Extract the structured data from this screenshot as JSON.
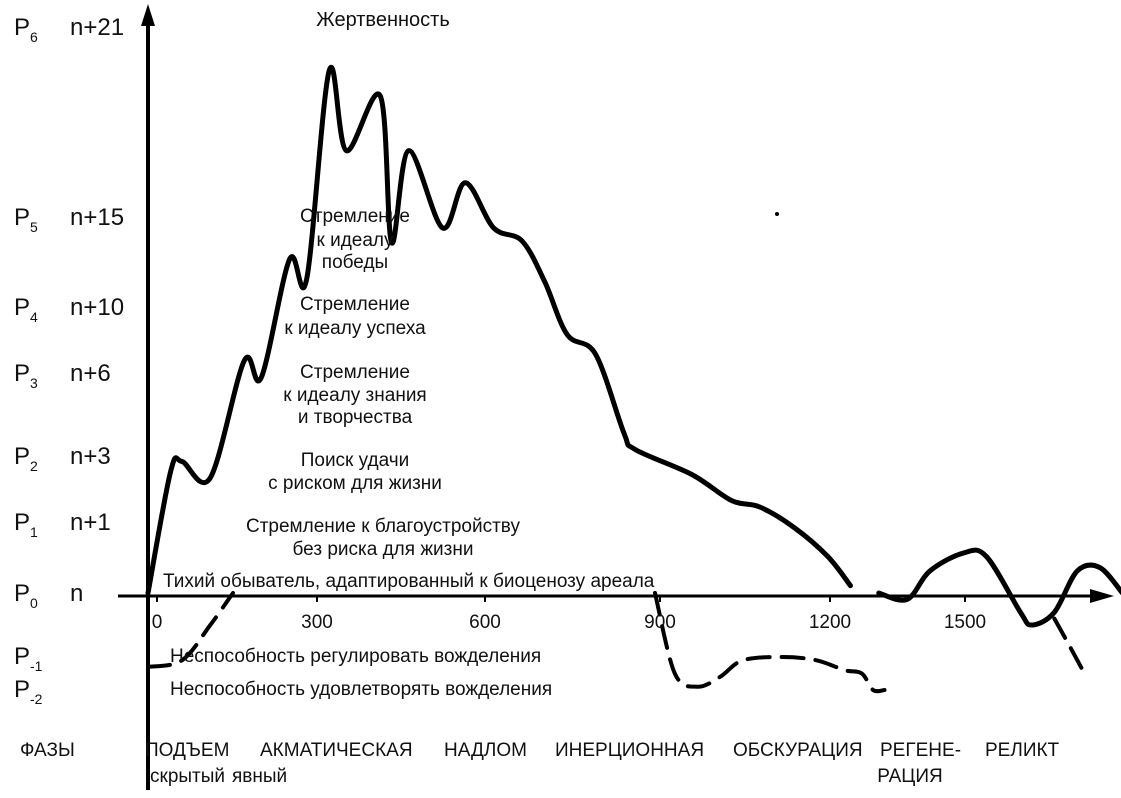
{
  "chart_data": {
    "type": "line",
    "title": "Жертвенность",
    "x_ticks": [
      "0",
      "300",
      "600",
      "900",
      "1200",
      "1500"
    ],
    "xlim": [
      0,
      1700
    ],
    "levels": [
      {
        "p": "P",
        "sub": "6",
        "n": "n+21",
        "value": 21
      },
      {
        "p": "P",
        "sub": "5",
        "n": "n+15",
        "value": 15
      },
      {
        "p": "P",
        "sub": "4",
        "n": "n+10",
        "value": 10
      },
      {
        "p": "P",
        "sub": "3",
        "n": "n+6",
        "value": 6
      },
      {
        "p": "P",
        "sub": "2",
        "n": "n+3",
        "value": 3
      },
      {
        "p": "P",
        "sub": "1",
        "n": "n+1",
        "value": 1
      },
      {
        "p": "P",
        "sub": "0",
        "n": "n",
        "value": 0
      },
      {
        "p": "P",
        "sub": "-1",
        "n": "",
        "value": -1
      },
      {
        "p": "P",
        "sub": "-2",
        "n": "",
        "value": -2
      }
    ],
    "zone_labels": [
      [
        "Стремление",
        "к идеалу",
        "победы"
      ],
      [
        "Стремление",
        "к идеалу успеха"
      ],
      [
        "Стремление",
        "к идеалу знания",
        "и творчества"
      ],
      [
        "Поиск удачи",
        "с риском для жизни"
      ],
      [
        "Стремление к благоустройству",
        "без риска для жизни"
      ],
      [
        "Тихий обыватель, адаптированный к биоценозу ареала"
      ],
      [
        "Неспособность регулировать вожделения"
      ],
      [
        "Неспособность удовлетворять вожделения"
      ]
    ],
    "phases": {
      "label": "ФАЗЫ",
      "items": [
        "ПОДЪЕМ",
        "АКМАТИЧЕСКАЯ",
        "НАДЛОМ",
        "ИНЕРЦИОННАЯ",
        "ОБСКУРАЦИЯ",
        "РЕГЕНЕ-",
        "РЕЛИКТ"
      ],
      "sub_items": [
        "скрытый",
        "явный",
        "РАЦИЯ"
      ]
    },
    "series": [
      {
        "style": "solid",
        "points": [
          [
            0,
            0
          ],
          [
            40,
            2.5
          ],
          [
            60,
            2.8
          ],
          [
            110,
            2.3
          ],
          [
            170,
            6.7
          ],
          [
            200,
            5.8
          ],
          [
            250,
            12.6
          ],
          [
            280,
            11.5
          ],
          [
            320,
            19.5
          ],
          [
            350,
            17
          ],
          [
            410,
            18.7
          ],
          [
            430,
            13.5
          ],
          [
            460,
            17
          ],
          [
            520,
            14.3
          ],
          [
            560,
            16
          ],
          [
            610,
            14.3
          ],
          [
            660,
            13.6
          ],
          [
            700,
            11.4
          ],
          [
            740,
            8.3
          ],
          [
            790,
            7.1
          ],
          [
            840,
            3.8
          ],
          [
            860,
            3.2
          ],
          [
            960,
            2.4
          ],
          [
            1030,
            1.6
          ],
          [
            1080,
            1.4
          ],
          [
            1140,
            0.9
          ],
          [
            1200,
            0.5
          ],
          [
            1240,
            0.1
          ]
        ]
      },
      {
        "style": "solid",
        "points": [
          [
            1290,
            0
          ],
          [
            1340,
            -0.1
          ],
          [
            1380,
            0.3
          ],
          [
            1440,
            0.55
          ],
          [
            1480,
            0.5
          ],
          [
            1540,
            -0.3
          ],
          [
            1560,
            -0.5
          ],
          [
            1600,
            -0.3
          ],
          [
            1640,
            0.3
          ],
          [
            1680,
            0.35
          ],
          [
            1720,
            0
          ]
        ]
      },
      {
        "style": "dashed",
        "points": [
          [
            0,
            -1.3
          ],
          [
            60,
            -1.1
          ],
          [
            110,
            -0.5
          ],
          [
            150,
            0
          ]
        ]
      },
      {
        "style": "dashed",
        "points": [
          [
            895,
            0
          ],
          [
            930,
            -1.5
          ],
          [
            970,
            -1.9
          ],
          [
            1010,
            -1.6
          ],
          [
            1050,
            -1.1
          ],
          [
            1120,
            -1.0
          ],
          [
            1180,
            -1.1
          ],
          [
            1230,
            -1.4
          ],
          [
            1260,
            -1.5
          ],
          [
            1280,
            -2.1
          ],
          [
            1300,
            -2.1
          ]
        ]
      },
      {
        "style": "dashed",
        "points": [
          [
            1600,
            -0.4
          ],
          [
            1625,
            -0.8
          ],
          [
            1650,
            -1.4
          ]
        ]
      }
    ]
  }
}
